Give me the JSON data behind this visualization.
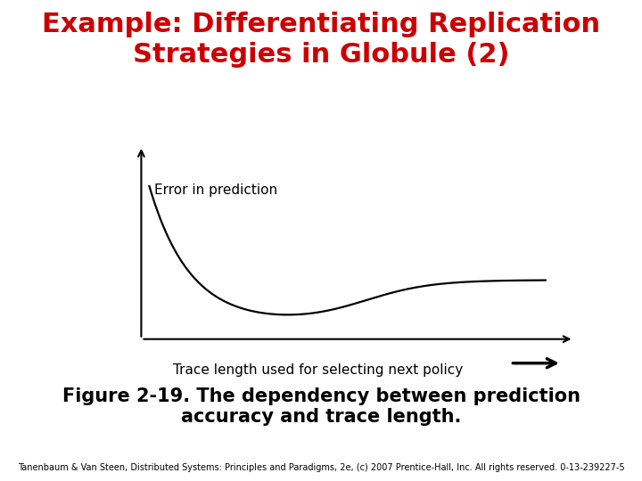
{
  "title_line1": "Example: Differentiating Replication",
  "title_line2": "Strategies in Globule (2)",
  "title_color": "#cc0000",
  "title_fontsize": 22,
  "ylabel_text": "Error in prediction",
  "xlabel_text": "Trace length used for selecting next policy",
  "caption_line1": "Figure 2-19. The dependency between prediction",
  "caption_line2": "accuracy and trace length.",
  "footer": "Tanenbaum & Van Steen, Distributed Systems: Principles and Paradigms, 2e, (c) 2007 Prentice-Hall, Inc. All rights reserved. 0-13-239227-5",
  "background_color": "#ffffff",
  "curve_color": "#000000",
  "axis_color": "#000000",
  "caption_fontsize": 15,
  "footer_fontsize": 7,
  "ylabel_fontsize": 11,
  "xlabel_fontsize": 11
}
